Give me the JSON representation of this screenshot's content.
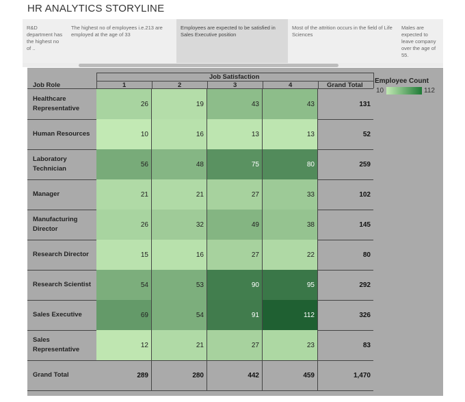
{
  "page": {
    "title": "HR ANALYTICS STORYLINE"
  },
  "tabs": [
    "R&D department has the highest no of ..",
    "The highest no of employees i.e.213 are employed at the age of 33",
    "Employees are expected to be satisfied in Sales Executive position",
    "Most of the attrition occurs in the field of Life Sciences",
    "Males are expected to leave company over the age of 55."
  ],
  "active_tab": 2,
  "chart_data": {
    "type": "heatmap",
    "column_header": "Job Satisfaction",
    "row_header": "Job Role",
    "columns": [
      "1",
      "2",
      "3",
      "4"
    ],
    "total_label": "Grand Total",
    "rows": [
      {
        "role": "Healthcare Representative",
        "values": [
          26,
          19,
          43,
          43
        ],
        "total": "131"
      },
      {
        "role": "Human Resources",
        "values": [
          10,
          16,
          13,
          13
        ],
        "total": "52"
      },
      {
        "role": "Laboratory Technician",
        "values": [
          56,
          48,
          75,
          80
        ],
        "total": "259"
      },
      {
        "role": "Manager",
        "values": [
          21,
          21,
          27,
          33
        ],
        "total": "102"
      },
      {
        "role": "Manufacturing Director",
        "values": [
          26,
          32,
          49,
          38
        ],
        "total": "145"
      },
      {
        "role": "Research Director",
        "values": [
          15,
          16,
          27,
          22
        ],
        "total": "80"
      },
      {
        "role": "Research Scientist",
        "values": [
          54,
          53,
          90,
          95
        ],
        "total": "292"
      },
      {
        "role": "Sales Executive",
        "values": [
          69,
          54,
          91,
          112
        ],
        "total": "326"
      },
      {
        "role": "Sales Representative",
        "values": [
          12,
          21,
          27,
          23
        ],
        "total": "83"
      }
    ],
    "grand_total_row": {
      "role": "Grand Total",
      "values": [
        "289",
        "280",
        "442",
        "459"
      ],
      "total": "1,470"
    },
    "legend": {
      "title": "Employee Count",
      "min": 10,
      "max": 112,
      "min_label": "10",
      "max_label": "112",
      "color_low": "#c2e9b4",
      "color_high": "#1f7a36"
    }
  }
}
